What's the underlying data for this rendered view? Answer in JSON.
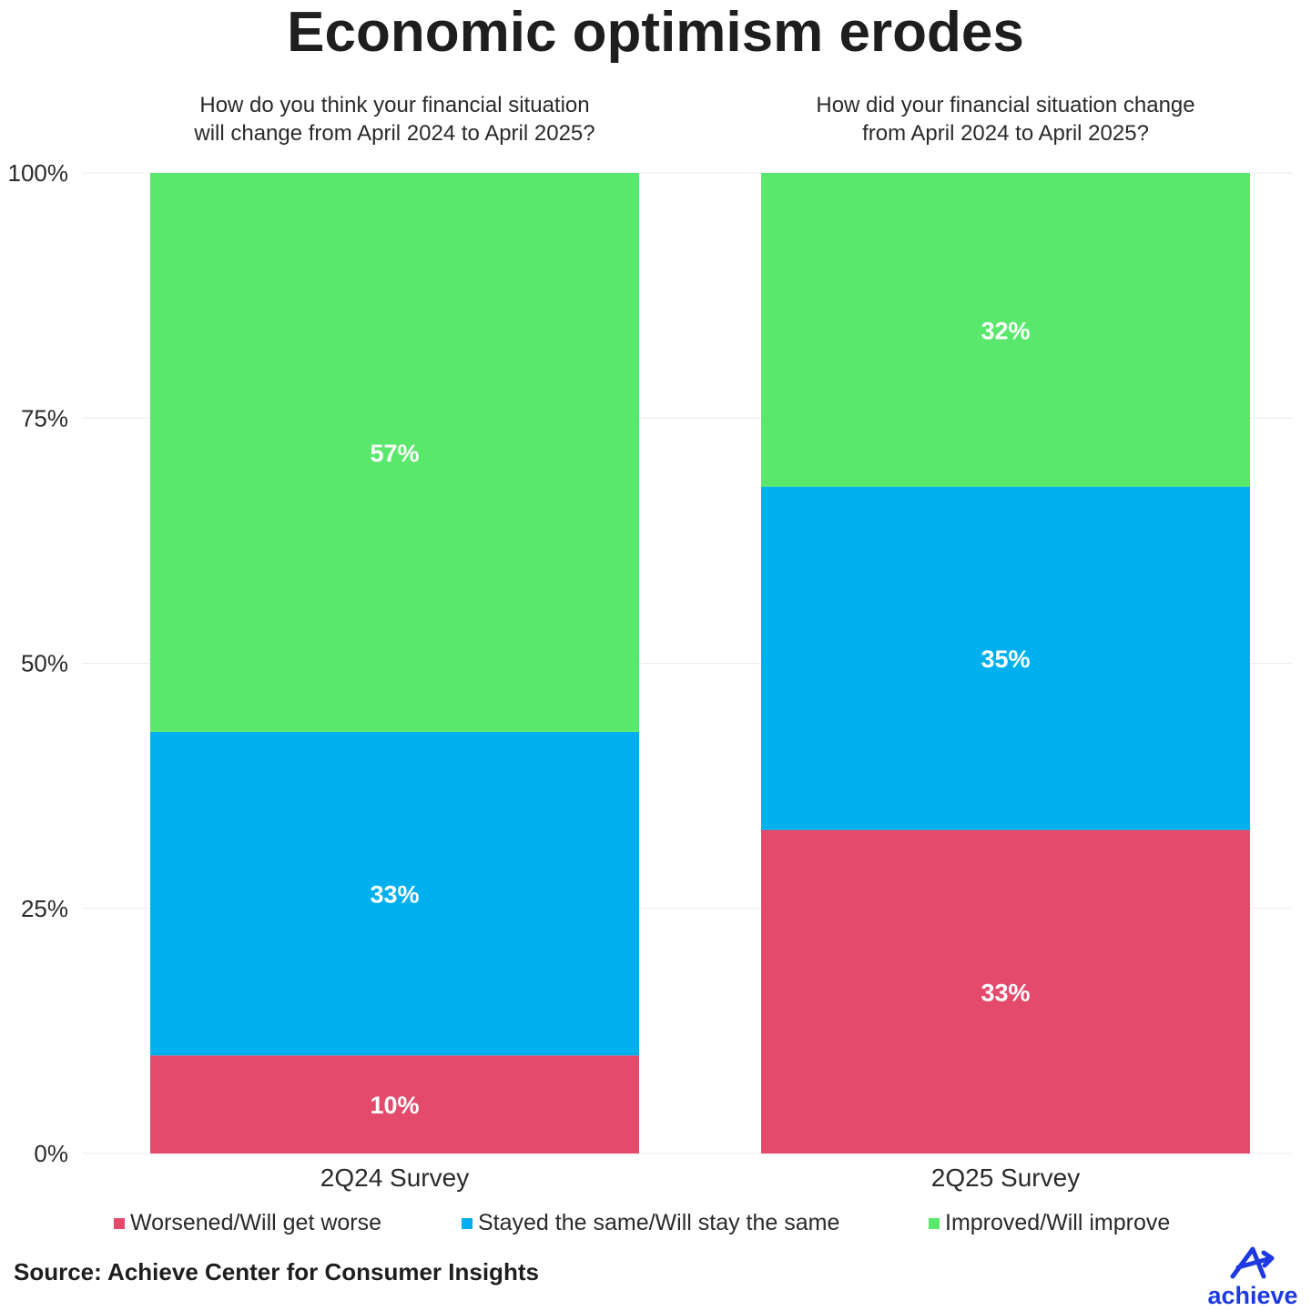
{
  "colors": {
    "worse": "#e34a6c",
    "same": "#00b0ee",
    "improve": "#59e86b",
    "brand": "#1d39e0",
    "grid": "#ececec"
  },
  "chart_data": {
    "type": "bar",
    "stacked": true,
    "title": "Economic optimism erodes",
    "categories": [
      "2Q24 Survey",
      "2Q25 Survey"
    ],
    "subtitles": [
      [
        "How do you think your financial situation",
        "will change from April 2024 to April 2025?"
      ],
      [
        "How did your financial situation change",
        "from April 2024 to April 2025?"
      ]
    ],
    "series": [
      {
        "name": "Worsened/Will get worse",
        "values": [
          10,
          33
        ],
        "labels": [
          "10%",
          "33%"
        ],
        "color_key": "worse"
      },
      {
        "name": "Stayed the same/Will stay the same",
        "values": [
          33,
          35
        ],
        "labels": [
          "33%",
          "35%"
        ],
        "color_key": "same"
      },
      {
        "name": "Improved/Will improve",
        "values": [
          57,
          32
        ],
        "labels": [
          "57%",
          "32%"
        ],
        "color_key": "improve"
      }
    ],
    "ylim": [
      0,
      100
    ],
    "yticks": [
      0,
      25,
      50,
      75,
      100
    ],
    "ytick_labels": [
      "0%",
      "25%",
      "50%",
      "75%",
      "100%"
    ],
    "grid": true,
    "legend_position": "bottom",
    "source": "Source: Achieve Center for Consumer Insights"
  },
  "logo": {
    "text": "achieve",
    "icon": "achieve-arrow-icon"
  }
}
